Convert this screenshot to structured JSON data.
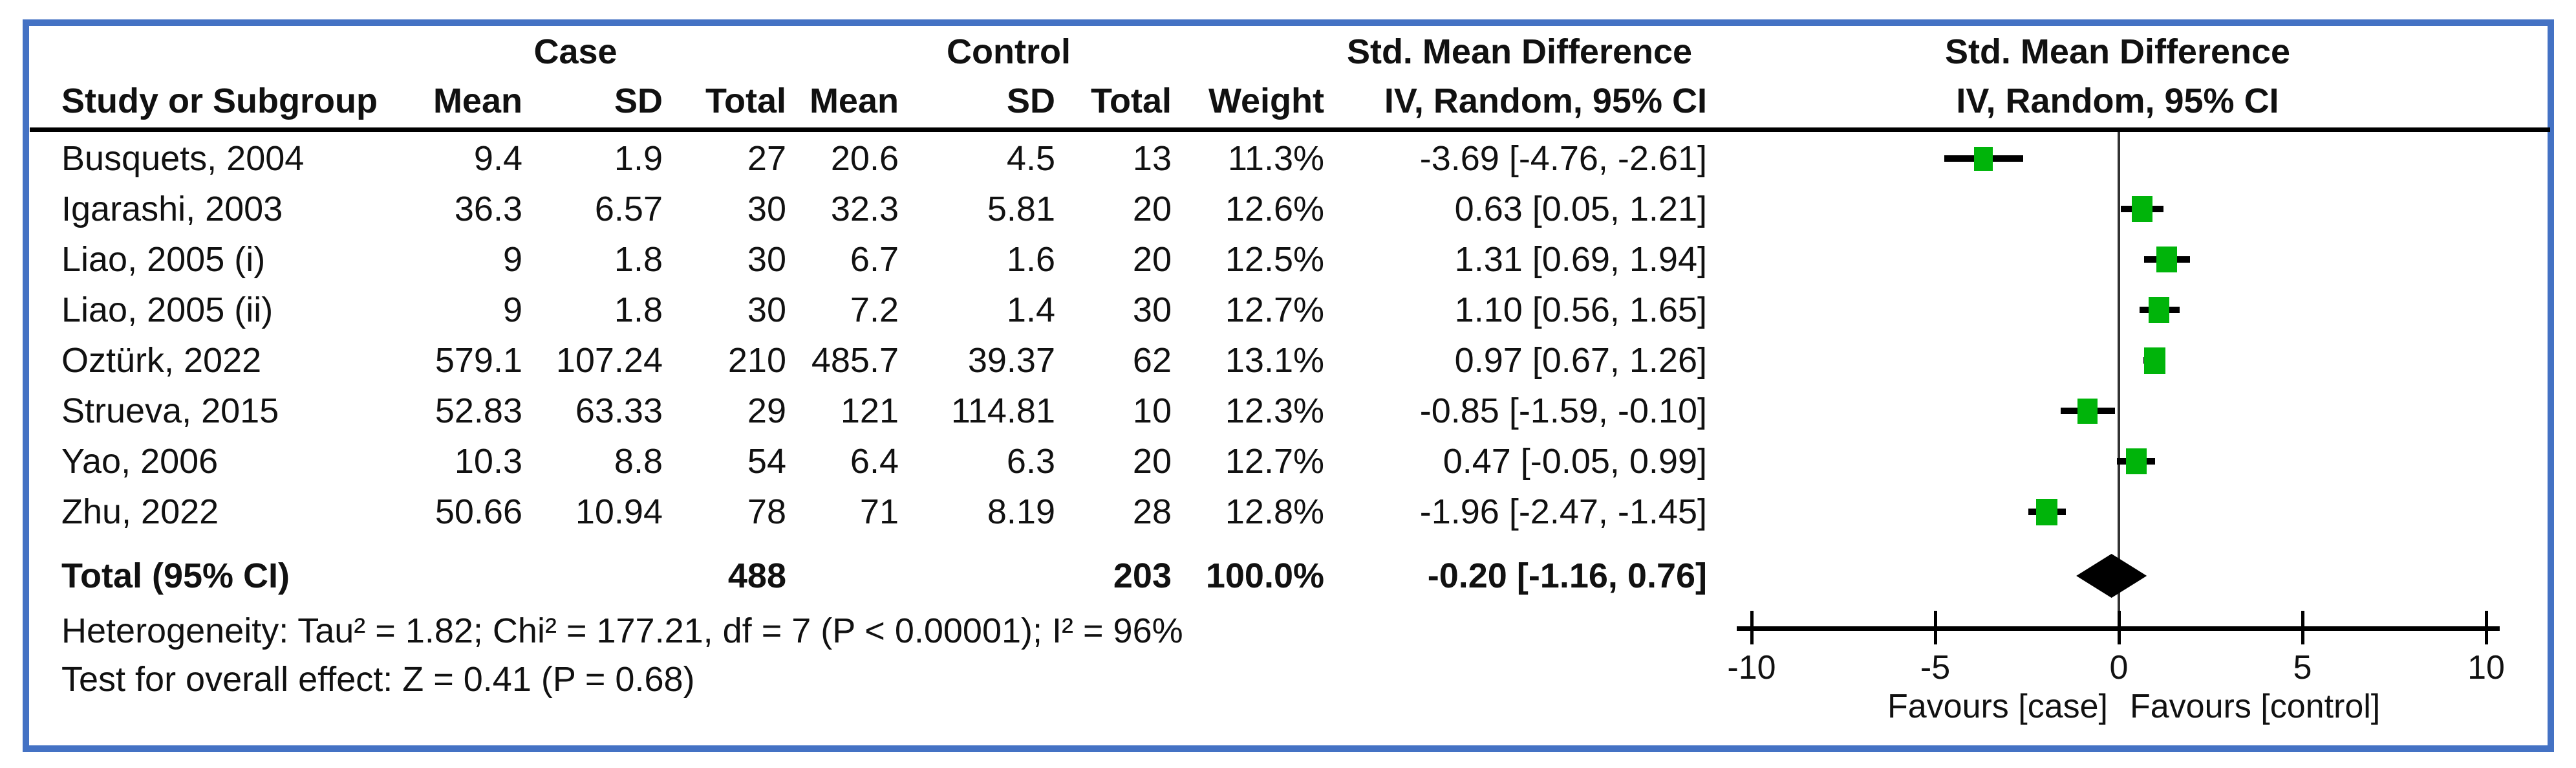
{
  "header": {
    "study_col": "Study or Subgroup",
    "case_group": "Case",
    "control_group": "Control",
    "smd_text_col": "Std. Mean Difference",
    "smd_plot_col": "Std. Mean Difference",
    "mean": "Mean",
    "sd": "SD",
    "total": "Total",
    "weight": "Weight",
    "ci_method_text": "IV, Random, 95% CI",
    "ci_method_plot": "IV, Random, 95% CI"
  },
  "studies": [
    {
      "name": "Busquets, 2004",
      "case_mean": "9.4",
      "case_sd": "1.9",
      "case_total": "27",
      "control_mean": "20.6",
      "control_sd": "4.5",
      "control_total": "13",
      "weight": "11.3%",
      "weight_value": 11.3,
      "smd_ci": "-3.69 [-4.76, -2.61]",
      "est": -3.69,
      "lo": -4.76,
      "hi": -2.61
    },
    {
      "name": "Igarashi, 2003",
      "case_mean": "36.3",
      "case_sd": "6.57",
      "case_total": "30",
      "control_mean": "32.3",
      "control_sd": "5.81",
      "control_total": "20",
      "weight": "12.6%",
      "weight_value": 12.6,
      "smd_ci": "0.63 [0.05, 1.21]",
      "est": 0.63,
      "lo": 0.05,
      "hi": 1.21
    },
    {
      "name": "Liao, 2005 (i)",
      "case_mean": "9",
      "case_sd": "1.8",
      "case_total": "30",
      "control_mean": "6.7",
      "control_sd": "1.6",
      "control_total": "20",
      "weight": "12.5%",
      "weight_value": 12.5,
      "smd_ci": "1.31 [0.69, 1.94]",
      "est": 1.31,
      "lo": 0.69,
      "hi": 1.94
    },
    {
      "name": "Liao, 2005 (ii)",
      "case_mean": "9",
      "case_sd": "1.8",
      "case_total": "30",
      "control_mean": "7.2",
      "control_sd": "1.4",
      "control_total": "30",
      "weight": "12.7%",
      "weight_value": 12.7,
      "smd_ci": "1.10 [0.56, 1.65]",
      "est": 1.1,
      "lo": 0.56,
      "hi": 1.65
    },
    {
      "name": "Oztürk, 2022",
      "case_mean": "579.1",
      "case_sd": "107.24",
      "case_total": "210",
      "control_mean": "485.7",
      "control_sd": "39.37",
      "control_total": "62",
      "weight": "13.1%",
      "weight_value": 13.1,
      "smd_ci": "0.97 [0.67, 1.26]",
      "est": 0.97,
      "lo": 0.67,
      "hi": 1.26
    },
    {
      "name": "Strueva, 2015",
      "case_mean": "52.83",
      "case_sd": "63.33",
      "case_total": "29",
      "control_mean": "121",
      "control_sd": "114.81",
      "control_total": "10",
      "weight": "12.3%",
      "weight_value": 12.3,
      "smd_ci": "-0.85 [-1.59, -0.10]",
      "est": -0.85,
      "lo": -1.59,
      "hi": -0.1
    },
    {
      "name": "Yao, 2006",
      "case_mean": "10.3",
      "case_sd": "8.8",
      "case_total": "54",
      "control_mean": "6.4",
      "control_sd": "6.3",
      "control_total": "20",
      "weight": "12.7%",
      "weight_value": 12.7,
      "smd_ci": "0.47 [-0.05, 0.99]",
      "est": 0.47,
      "lo": -0.05,
      "hi": 0.99
    },
    {
      "name": "Zhu, 2022",
      "case_mean": "50.66",
      "case_sd": "10.94",
      "case_total": "78",
      "control_mean": "71",
      "control_sd": "8.19",
      "control_total": "28",
      "weight": "12.8%",
      "weight_value": 12.8,
      "smd_ci": "-1.96 [-2.47, -1.45]",
      "est": -1.96,
      "lo": -2.47,
      "hi": -1.45
    }
  ],
  "total_row": {
    "label": "Total (95% CI)",
    "case_total": "488",
    "control_total": "203",
    "weight": "100.0%",
    "smd_ci": "-0.20 [-1.16, 0.76]",
    "est": -0.2,
    "lo": -1.16,
    "hi": 0.76
  },
  "footnotes": {
    "heterogeneity": "Heterogeneity: Tau² = 1.82; Chi² = 177.21, df = 7 (P < 0.00001); I² = 96%",
    "overall_effect": "Test for overall effect: Z = 0.41 (P = 0.68)"
  },
  "axis": {
    "ticks": [
      -10,
      -5,
      0,
      5,
      10
    ],
    "min": -10,
    "max": 10,
    "favours_left": "Favours [case]",
    "favours_right": "Favours [control]"
  },
  "colors": {
    "frame": "#4472C4",
    "marker_green": "#00B40A",
    "ci_line": "#000000",
    "diamond": "#000000",
    "zero_line": "#333333"
  },
  "chart_data": {
    "type": "scatter",
    "subtype": "forest-plot-meta-analysis",
    "title": "Std. Mean Difference, IV, Random, 95% CI",
    "xlabel_left": "Favours [case]",
    "xlabel_right": "Favours [control]",
    "xlim": [
      -10,
      10
    ],
    "x_ticks": [
      -10,
      -5,
      0,
      5,
      10
    ],
    "grid": false,
    "series": [
      {
        "name": "Busquets, 2004",
        "est": -3.69,
        "ci": [
          -4.76,
          -2.61
        ],
        "weight_pct": 11.3
      },
      {
        "name": "Igarashi, 2003",
        "est": 0.63,
        "ci": [
          0.05,
          1.21
        ],
        "weight_pct": 12.6
      },
      {
        "name": "Liao, 2005 (i)",
        "est": 1.31,
        "ci": [
          0.69,
          1.94
        ],
        "weight_pct": 12.5
      },
      {
        "name": "Liao, 2005 (ii)",
        "est": 1.1,
        "ci": [
          0.56,
          1.65
        ],
        "weight_pct": 12.7
      },
      {
        "name": "Oztürk, 2022",
        "est": 0.97,
        "ci": [
          0.67,
          1.26
        ],
        "weight_pct": 13.1
      },
      {
        "name": "Strueva, 2015",
        "est": -0.85,
        "ci": [
          -1.59,
          -0.1
        ],
        "weight_pct": 12.3
      },
      {
        "name": "Yao, 2006",
        "est": 0.47,
        "ci": [
          -0.05,
          0.99
        ],
        "weight_pct": 12.7
      },
      {
        "name": "Zhu, 2022",
        "est": -1.96,
        "ci": [
          -2.47,
          -1.45
        ],
        "weight_pct": 12.8
      }
    ],
    "summary_diamond": {
      "est": -0.2,
      "ci": [
        -1.16,
        0.76
      ],
      "total_case_n": 488,
      "total_control_n": 203
    }
  }
}
